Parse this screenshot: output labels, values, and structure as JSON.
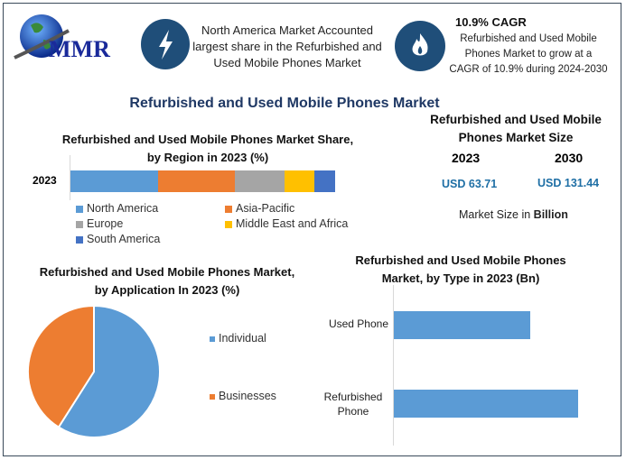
{
  "header": {
    "logo_text": "MMR",
    "fact1": {
      "icon": "lightning-icon",
      "text": "North America Market Accounted largest share in the Refurbished and Used Mobile Phones Market"
    },
    "fact2": {
      "icon": "flame-icon",
      "title": "10.9% CAGR",
      "text": "Refurbished and Used Mobile Phones Market to grow at a CAGR of 10.9% during 2024-2030"
    }
  },
  "main_title": "Refurbished and Used Mobile Phones Market",
  "market_size": {
    "title": "Refurbished and Used Mobile Phones Market Size",
    "year1": "2023",
    "year2": "2030",
    "value1": "USD 63.71",
    "value2": "USD 131.44",
    "note_prefix": "Market Size in ",
    "note_bold": "Billion"
  },
  "colors": {
    "blue": "#5b9bd5",
    "orange": "#ed7d31",
    "gray": "#a5a5a5",
    "yellow": "#ffc000",
    "darkblue": "#4472c4",
    "accent": "#1f4e79",
    "value_text": "#1f6fa5"
  },
  "chart_data": [
    {
      "type": "bar",
      "orientation": "horizontal-stacked",
      "title": "Refurbished and Used Mobile Phones Market Share, by Region in 2023 (%)",
      "categories": [
        "2023"
      ],
      "series": [
        {
          "name": "North America",
          "values": [
            33
          ],
          "color": "#5b9bd5"
        },
        {
          "name": "Asia-Pacific",
          "values": [
            29
          ],
          "color": "#ed7d31"
        },
        {
          "name": "Europe",
          "values": [
            19
          ],
          "color": "#a5a5a5"
        },
        {
          "name": "Middle East and Africa",
          "values": [
            11
          ],
          "color": "#ffc000"
        },
        {
          "name": "South America",
          "values": [
            8
          ],
          "color": "#4472c4"
        }
      ],
      "legend": "bottom"
    },
    {
      "type": "pie",
      "title": "Refurbished and Used Mobile Phones Market, by Application In 2023 (%)",
      "slices": [
        {
          "name": "Individual",
          "value": 59,
          "color": "#5b9bd5"
        },
        {
          "name": "Businesses",
          "value": 41,
          "color": "#ed7d31"
        }
      ],
      "legend": "right"
    },
    {
      "type": "bar",
      "orientation": "horizontal",
      "title": "Refurbished and Used Mobile Phones Market, by Type in 2023 (Bn)",
      "categories": [
        "Used Phone",
        "Refurbished Phone"
      ],
      "values": [
        27.1,
        36.6
      ],
      "color": "#5b9bd5"
    }
  ]
}
